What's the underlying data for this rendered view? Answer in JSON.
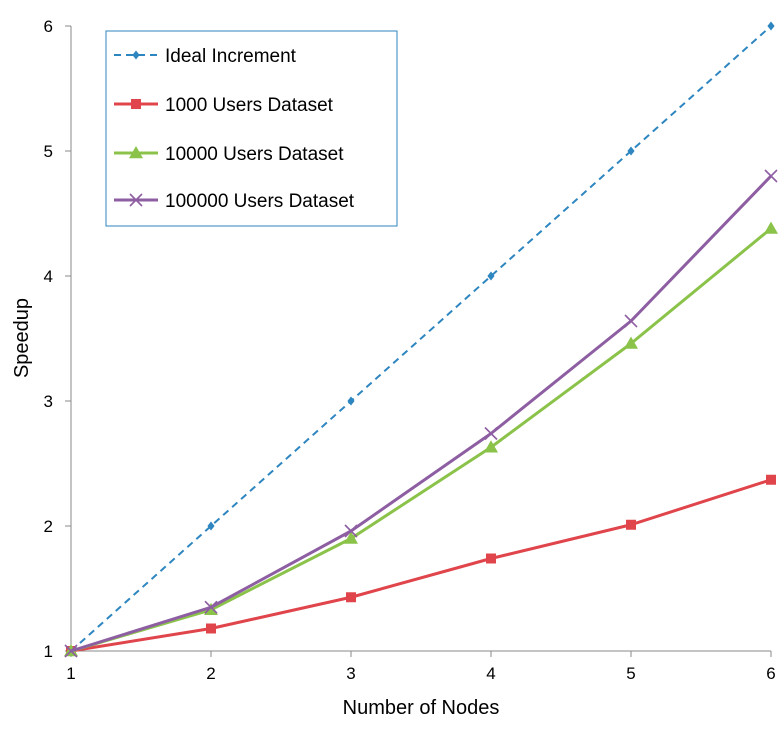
{
  "chart_data": {
    "type": "line",
    "title": "",
    "xlabel": "Number of Nodes",
    "ylabel": "Speedup",
    "x": [
      1,
      2,
      3,
      4,
      5,
      6
    ],
    "xlim": [
      1,
      6
    ],
    "ylim": [
      1,
      6
    ],
    "xticks": [
      "1",
      "2",
      "3",
      "4",
      "5",
      "6"
    ],
    "yticks": [
      "1",
      "2",
      "3",
      "4",
      "5",
      "6"
    ],
    "grid": false,
    "legend_position": "top-left",
    "series": [
      {
        "name": "Ideal Increment",
        "values": [
          1,
          2,
          3,
          4,
          5,
          6
        ],
        "color": "#2e86c1",
        "line_style": "dashed",
        "marker": "diamond"
      },
      {
        "name": "1000 Users Dataset",
        "values": [
          1.0,
          1.18,
          1.43,
          1.74,
          2.01,
          2.37
        ],
        "color": "#e0454b",
        "line_style": "solid",
        "marker": "square"
      },
      {
        "name": "10000 Users Dataset",
        "values": [
          1.0,
          1.33,
          1.9,
          2.63,
          3.46,
          4.38
        ],
        "color": "#8bc34a",
        "line_style": "solid",
        "marker": "triangle"
      },
      {
        "name": "100000 Users Dataset",
        "values": [
          1.0,
          1.35,
          1.96,
          2.74,
          3.64,
          4.8
        ],
        "color": "#8e5ea2",
        "line_style": "solid",
        "marker": "x"
      }
    ]
  }
}
